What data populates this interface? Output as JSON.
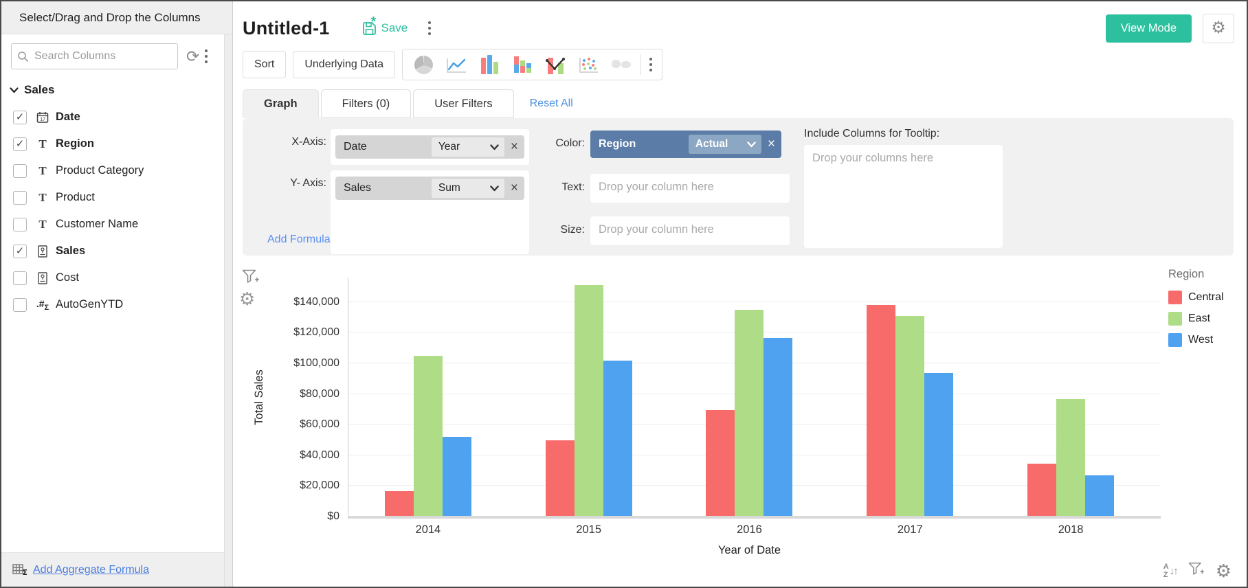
{
  "sidebar": {
    "header": "Select/Drag and Drop the Columns",
    "search_placeholder": "Search Columns",
    "group_label": "Sales",
    "columns": [
      {
        "label": "Date",
        "type": "date",
        "icon": "calendar-icon",
        "checked": true
      },
      {
        "label": "Region",
        "type": "text",
        "icon": "text-icon",
        "checked": true
      },
      {
        "label": "Product Category",
        "type": "text",
        "icon": "text-icon",
        "checked": false
      },
      {
        "label": "Product",
        "type": "text",
        "icon": "text-icon",
        "checked": false
      },
      {
        "label": "Customer Name",
        "type": "text",
        "icon": "text-icon",
        "checked": false
      },
      {
        "label": "Sales",
        "type": "number",
        "icon": "number-icon",
        "checked": true
      },
      {
        "label": "Cost",
        "type": "number",
        "icon": "number-icon",
        "checked": false
      },
      {
        "label": "AutoGenYTD",
        "type": "formula",
        "icon": "formula-icon",
        "checked": false
      }
    ],
    "footer_link": "Add Aggregate Formula"
  },
  "header": {
    "title": "Untitled-1",
    "save_label": "Save",
    "view_mode_label": "View Mode"
  },
  "toolbar": {
    "sort_label": "Sort",
    "underlying_data_label": "Underlying Data"
  },
  "tabs": {
    "graph": "Graph",
    "filters": "Filters (0)",
    "user_filters": "User Filters",
    "reset_all": "Reset All"
  },
  "config": {
    "x_axis_label": "X-Axis:",
    "x_axis_field": "Date",
    "x_axis_agg": "Year",
    "y_axis_label": "Y- Axis:",
    "y_axis_field": "Sales",
    "y_axis_agg": "Sum",
    "add_formula": "Add Formula",
    "color_label": "Color:",
    "color_field": "Region",
    "color_agg": "Actual",
    "text_label": "Text:",
    "text_placeholder": "Drop your column here",
    "size_label": "Size:",
    "size_placeholder": "Drop your column here",
    "tooltip_label": "Include Columns for Tooltip:",
    "tooltip_placeholder": "Drop your columns here"
  },
  "chart_data": {
    "type": "bar",
    "categories": [
      "2014",
      "2015",
      "2016",
      "2017",
      "2018"
    ],
    "series": [
      {
        "name": "Central",
        "color": "#F86B6B",
        "values": [
          16500,
          50000,
          69500,
          138000,
          34500
        ]
      },
      {
        "name": "East",
        "color": "#AFDD87",
        "values": [
          105000,
          151000,
          135000,
          131000,
          76500
        ]
      },
      {
        "name": "West",
        "color": "#4EA2F0",
        "values": [
          52000,
          102000,
          116500,
          93500,
          27000
        ]
      }
    ],
    "title": "",
    "xlabel": "Year of Date",
    "ylabel": "Total Sales",
    "ylim": [
      0,
      156000
    ],
    "ytick_step": 20000,
    "ytick_max": 140000,
    "ytick_prefix": "$",
    "grid": true,
    "legend_title": "Region",
    "legend_position": "right"
  },
  "colors": {
    "accent_teal": "#2BBF9F",
    "link_blue": "#4A90E2",
    "color_pill_blue": "#5A7CA6"
  }
}
